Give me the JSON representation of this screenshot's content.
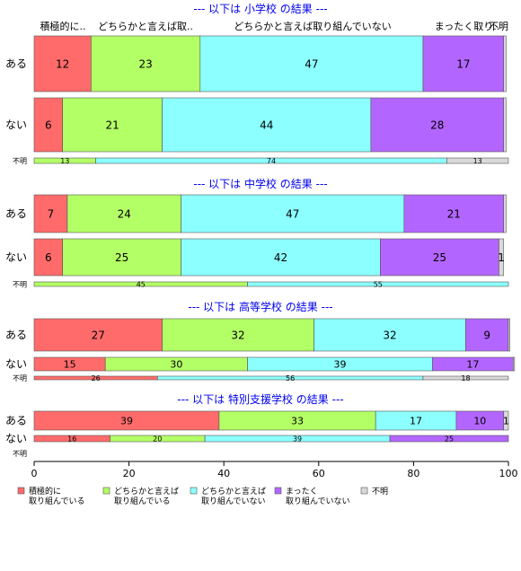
{
  "chart_data": {
    "type": "bar",
    "orientation": "horizontal",
    "stacked": true,
    "xlim": [
      0,
      100
    ],
    "x_ticks": [
      "0",
      "20",
      "40",
      "60",
      "80",
      "100"
    ],
    "column_headers": [
      "積極的に..",
      "どちらかと言えば取..",
      "どちらかと言えば取り組んでいない",
      "まったく取り..",
      "不明"
    ],
    "legend": {
      "position": "bottom",
      "entries": [
        {
          "label": [
            "積極的に",
            "取り組んでいる"
          ],
          "color": "#ff6b6b"
        },
        {
          "label": [
            "どちらかと言えば",
            "取り組んでいる"
          ],
          "color": "#b3ff66"
        },
        {
          "label": [
            "どちらかと言えば",
            "取り組んでいない"
          ],
          "color": "#8cffff"
        },
        {
          "label": [
            "まったく",
            "取り組んでいない"
          ],
          "color": "#b366ff"
        },
        {
          "label": [
            "不明"
          ],
          "color": "#d9d9d9"
        }
      ]
    },
    "panels": [
      {
        "title": "--- 以下は 小学校 の結果 ---",
        "rows": [
          {
            "label": "ある",
            "values": [
              12,
              23,
              47,
              17,
              0.5
            ],
            "labels": [
              "12",
              "23",
              "47",
              "17",
              ""
            ]
          },
          {
            "label": "ない",
            "values": [
              6,
              21,
              44,
              28,
              0.5
            ],
            "labels": [
              "6",
              "21",
              "44",
              "28",
              ""
            ]
          },
          {
            "label": "不明",
            "values": [
              0,
              13,
              74,
              0,
              13
            ],
            "labels": [
              "",
              "13",
              "74",
              "",
              "13"
            ]
          }
        ]
      },
      {
        "title": "--- 以下は 中学校 の結果 ---",
        "rows": [
          {
            "label": "ある",
            "values": [
              7,
              24,
              47,
              21,
              0.5
            ],
            "labels": [
              "7",
              "24",
              "47",
              "21",
              ""
            ]
          },
          {
            "label": "ない",
            "values": [
              6,
              25,
              42,
              25,
              1
            ],
            "labels": [
              "6",
              "25",
              "42",
              "25",
              "1"
            ]
          },
          {
            "label": "不明",
            "values": [
              0,
              45,
              55,
              0,
              0
            ],
            "labels": [
              "",
              "45",
              "55",
              "",
              ""
            ]
          }
        ]
      },
      {
        "title": "--- 以下は 高等学校 の結果 ---",
        "rows": [
          {
            "label": "ある",
            "values": [
              27,
              32,
              32,
              9,
              0.3
            ],
            "labels": [
              "27",
              "32",
              "32",
              "9",
              ""
            ]
          },
          {
            "label": "ない",
            "values": [
              15,
              30,
              39,
              17,
              0.3
            ],
            "labels": [
              "15",
              "30",
              "39",
              "17",
              ""
            ]
          },
          {
            "label": "不明",
            "values": [
              26,
              0,
              56,
              0,
              18
            ],
            "labels": [
              "26",
              "",
              "56",
              "",
              "18"
            ]
          }
        ]
      },
      {
        "title": "--- 以下は 特別支援学校 の結果 ---",
        "rows": [
          {
            "label": "ある",
            "values": [
              39,
              33,
              17,
              10,
              1
            ],
            "labels": [
              "39",
              "33",
              "17",
              "10",
              "1"
            ]
          },
          {
            "label": "ない",
            "values": [
              16,
              20,
              39,
              25,
              0
            ],
            "labels": [
              "16",
              "20",
              "39",
              "25",
              ""
            ]
          },
          {
            "label": "不明",
            "values": [
              0,
              0,
              0,
              0,
              0
            ],
            "labels": [
              "",
              "",
              "",
              "",
              ""
            ]
          }
        ]
      }
    ]
  }
}
